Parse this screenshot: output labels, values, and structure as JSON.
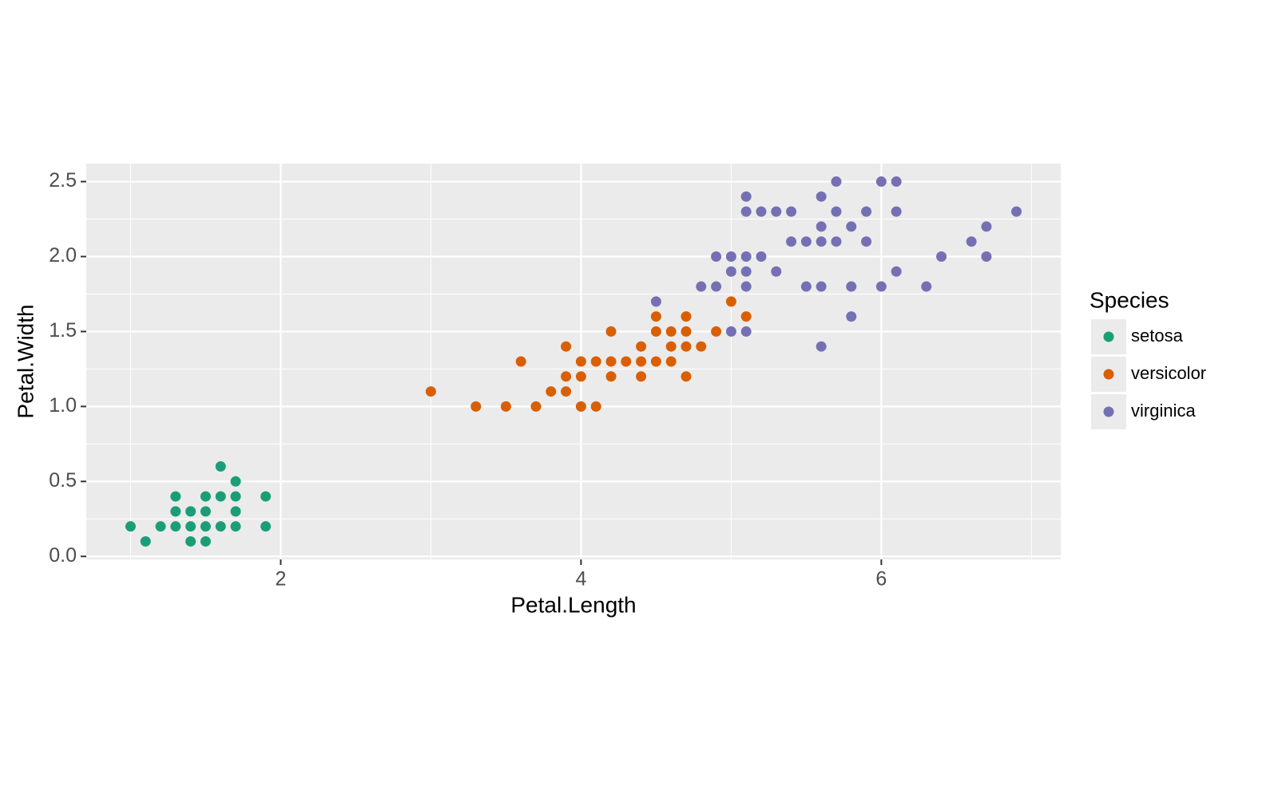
{
  "chart_data": {
    "type": "scatter",
    "x_label": "Petal.Length",
    "y_label": "Petal.Width",
    "legend_title": "Species",
    "xlim": [
      0.705,
      7.195
    ],
    "ylim": [
      -0.02,
      2.62
    ],
    "xticks": [
      2,
      4,
      6
    ],
    "yticks": [
      {
        "value": 0,
        "label": "0.0"
      },
      0.5,
      {
        "value": 1,
        "label": "1.0"
      },
      1.5,
      {
        "value": 2,
        "label": "2.0"
      },
      2.5
    ],
    "x_minor_grid": [
      1,
      3,
      5,
      7
    ],
    "y_minor_grid": [
      0.25,
      0.75,
      1.25,
      1.75,
      2.25
    ],
    "grid": true,
    "legend": "right",
    "series": [
      {
        "name": "setosa",
        "color": "#1b9e77",
        "x": [
          1.0,
          1.1,
          1.2,
          1.3,
          1.3,
          1.3,
          1.4,
          1.4,
          1.4,
          1.5,
          1.5,
          1.5,
          1.5,
          1.6,
          1.6,
          1.6,
          1.7,
          1.7,
          1.7,
          1.7,
          1.9,
          1.9
        ],
        "values": [
          0.2,
          0.1,
          0.2,
          0.4,
          0.3,
          0.2,
          0.3,
          0.2,
          0.1,
          0.4,
          0.3,
          0.2,
          0.1,
          0.6,
          0.4,
          0.2,
          0.5,
          0.4,
          0.3,
          0.2,
          0.4,
          0.2
        ]
      },
      {
        "name": "versicolor",
        "color": "#d95f02",
        "x": [
          3.0,
          3.3,
          3.5,
          3.6,
          3.7,
          3.8,
          3.9,
          3.9,
          3.9,
          4.0,
          4.0,
          4.0,
          4.1,
          4.1,
          4.2,
          4.2,
          4.2,
          4.3,
          4.4,
          4.4,
          4.4,
          4.5,
          4.5,
          4.5,
          4.6,
          4.6,
          4.6,
          4.7,
          4.7,
          4.7,
          4.7,
          4.8,
          4.9,
          5.0,
          5.1
        ],
        "values": [
          1.1,
          1.0,
          1.0,
          1.3,
          1.0,
          1.1,
          1.4,
          1.2,
          1.1,
          1.3,
          1.2,
          1.0,
          1.3,
          1.0,
          1.5,
          1.3,
          1.2,
          1.3,
          1.4,
          1.3,
          1.2,
          1.6,
          1.5,
          1.3,
          1.5,
          1.4,
          1.3,
          1.6,
          1.5,
          1.4,
          1.2,
          1.4,
          1.5,
          1.7,
          1.6
        ]
      },
      {
        "name": "virginica",
        "color": "#7570b3",
        "x": [
          4.5,
          4.8,
          4.9,
          4.9,
          5.0,
          5.0,
          5.0,
          5.1,
          5.1,
          5.1,
          5.1,
          5.1,
          5.1,
          5.2,
          5.2,
          5.3,
          5.3,
          5.4,
          5.4,
          5.5,
          5.5,
          5.6,
          5.6,
          5.6,
          5.6,
          5.6,
          5.7,
          5.7,
          5.7,
          5.8,
          5.8,
          5.8,
          5.9,
          5.9,
          6.0,
          6.0,
          6.1,
          6.1,
          6.1,
          6.3,
          6.4,
          6.6,
          6.7,
          6.7,
          6.9
        ],
        "values": [
          1.7,
          1.8,
          1.8,
          2.0,
          1.5,
          1.9,
          2.0,
          1.5,
          1.8,
          1.9,
          2.0,
          2.3,
          2.4,
          2.0,
          2.3,
          1.9,
          2.3,
          2.1,
          2.3,
          1.8,
          2.1,
          1.4,
          1.8,
          2.1,
          2.2,
          2.4,
          2.1,
          2.3,
          2.5,
          1.6,
          1.8,
          2.2,
          2.1,
          2.3,
          1.8,
          2.5,
          1.9,
          2.3,
          2.5,
          1.8,
          2.0,
          2.1,
          2.0,
          2.2,
          2.3
        ]
      }
    ]
  }
}
